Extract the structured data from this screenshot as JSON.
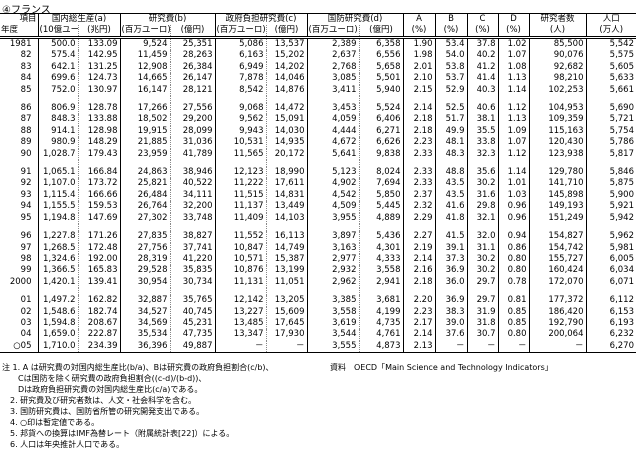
{
  "title": "④フランス",
  "header": {
    "item": "項目",
    "year": "年度",
    "groups": [
      {
        "label": "国内総生産(a)",
        "units": [
          "(10億ユーロ)",
          "(兆円)"
        ]
      },
      {
        "label": "研究費(b)",
        "units": [
          "(百万ユーロ)",
          "(億円)"
        ]
      },
      {
        "label": "政府負担研究費(c)",
        "units": [
          "(百万ユーロ)",
          "(億円)"
        ]
      },
      {
        "label": "国防研究費(d)",
        "units": [
          "(百万ユーロ)",
          "(億円)"
        ]
      }
    ],
    "indices": [
      {
        "label": "A",
        "unit": "(%)"
      },
      {
        "label": "B",
        "unit": "(%)"
      },
      {
        "label": "C",
        "unit": "(%)"
      },
      {
        "label": "D",
        "unit": "(%)"
      }
    ],
    "researchers": {
      "label": "研究者数",
      "unit": "(人)"
    },
    "population": {
      "label": "人口",
      "unit": "(万人)"
    }
  },
  "rows": [
    [
      "1981",
      "500.0",
      "133.09",
      "9,524",
      "25,351",
      "5,086",
      "13,537",
      "2,389",
      "6,358",
      "1.90",
      "53.4",
      "37.8",
      "1.02",
      "85,500",
      "5,542"
    ],
    [
      "82",
      "575.4",
      "142.95",
      "11,459",
      "28,263",
      "6,163",
      "15,202",
      "2,637",
      "6,556",
      "1.98",
      "54.0",
      "40.2",
      "1.07",
      "90,076",
      "5,575"
    ],
    [
      "83",
      "642.1",
      "131.25",
      "12,908",
      "26,384",
      "6,949",
      "14,202",
      "2,768",
      "5,658",
      "2.01",
      "53.8",
      "41.2",
      "1.08",
      "92,682",
      "5,605"
    ],
    [
      "84",
      "699.6",
      "124.73",
      "14,665",
      "26,147",
      "7,878",
      "14,046",
      "3,085",
      "5,501",
      "2.10",
      "53.7",
      "41.4",
      "1.13",
      "98,210",
      "5,633"
    ],
    [
      "85",
      "752.0",
      "130.97",
      "16,147",
      "28,121",
      "8,542",
      "14,876",
      "3,411",
      "5,940",
      "2.15",
      "52.9",
      "40.3",
      "1.14",
      "102,253",
      "5,661"
    ],
    [
      "86",
      "806.9",
      "128.78",
      "17,266",
      "27,556",
      "9,068",
      "14,472",
      "3,453",
      "5,524",
      "2.14",
      "52.5",
      "40.6",
      "1.12",
      "104,953",
      "5,690"
    ],
    [
      "87",
      "848.3",
      "133.88",
      "18,502",
      "29,200",
      "9,562",
      "15,091",
      "4,059",
      "6,406",
      "2.18",
      "51.7",
      "38.1",
      "1.13",
      "109,359",
      "5,721"
    ],
    [
      "88",
      "914.1",
      "128.98",
      "19,915",
      "28,099",
      "9,943",
      "14,030",
      "4,444",
      "6,271",
      "2.18",
      "49.9",
      "35.5",
      "1.09",
      "115,163",
      "5,754"
    ],
    [
      "89",
      "980.9",
      "148.29",
      "21,885",
      "31,036",
      "10,531",
      "14,935",
      "4,672",
      "6,626",
      "2.23",
      "48.1",
      "33.8",
      "1.07",
      "120,430",
      "5,786"
    ],
    [
      "90",
      "1,028.7",
      "179.43",
      "23,959",
      "41,789",
      "11,565",
      "20,172",
      "5,641",
      "9,838",
      "2.33",
      "48.3",
      "32.3",
      "1.12",
      "123,938",
      "5,817"
    ],
    [
      "91",
      "1,065.1",
      "166.84",
      "24,863",
      "38,946",
      "12,123",
      "18,990",
      "5,123",
      "8,024",
      "2.33",
      "48.8",
      "35.6",
      "1.14",
      "129,780",
      "5,846"
    ],
    [
      "92",
      "1,107.0",
      "173.72",
      "25,821",
      "40,522",
      "11,222",
      "17,611",
      "4,902",
      "7,694",
      "2.33",
      "43.5",
      "30.2",
      "1.01",
      "141,710",
      "5,875"
    ],
    [
      "93",
      "1,115.4",
      "166.66",
      "26,484",
      "34,111",
      "11,515",
      "14,831",
      "4,542",
      "5,850",
      "2.37",
      "43.5",
      "31.6",
      "1.03",
      "145,898",
      "5,900"
    ],
    [
      "94",
      "1,155.5",
      "159.53",
      "26,764",
      "32,200",
      "11,137",
      "13,449",
      "4,509",
      "5,445",
      "2.32",
      "41.6",
      "29.8",
      "0.96",
      "149,193",
      "5,921"
    ],
    [
      "95",
      "1,194.8",
      "147.69",
      "27,302",
      "33,748",
      "11,409",
      "14,103",
      "3,955",
      "4,889",
      "2.29",
      "41.8",
      "32.1",
      "0.96",
      "151,249",
      "5,942"
    ],
    [
      "96",
      "1,227.8",
      "171.26",
      "27,835",
      "38,827",
      "11,552",
      "16,113",
      "3,897",
      "5,436",
      "2.27",
      "41.5",
      "32.0",
      "0.94",
      "154,827",
      "5,962"
    ],
    [
      "97",
      "1,268.5",
      "172.48",
      "27,756",
      "37,741",
      "10,847",
      "14,749",
      "3,163",
      "4,301",
      "2.19",
      "39.1",
      "31.1",
      "0.86",
      "154,742",
      "5,981"
    ],
    [
      "98",
      "1,324.6",
      "192.00",
      "28,319",
      "41,220",
      "10,571",
      "15,387",
      "2,977",
      "4,333",
      "2.14",
      "37.3",
      "30.2",
      "0.80",
      "155,727",
      "6,005"
    ],
    [
      "99",
      "1,366.5",
      "165.83",
      "29,528",
      "35,835",
      "10,876",
      "13,199",
      "2,932",
      "3,558",
      "2.16",
      "36.9",
      "30.2",
      "0.80",
      "160,424",
      "6,034"
    ],
    [
      "2000",
      "1,420.1",
      "139.41",
      "30,954",
      "30,734",
      "11,131",
      "11,051",
      "2,962",
      "2,941",
      "2.18",
      "36.0",
      "29.7",
      "0.78",
      "172,070",
      "6,071"
    ],
    [
      "01",
      "1,497.2",
      "162.82",
      "32,887",
      "35,765",
      "12,142",
      "13,205",
      "3,385",
      "3,681",
      "2.20",
      "36.9",
      "29.7",
      "0.81",
      "177,372",
      "6,112"
    ],
    [
      "02",
      "1,548.6",
      "182.74",
      "34,527",
      "40,745",
      "13,227",
      "15,609",
      "3,558",
      "4,199",
      "2.23",
      "38.3",
      "31.9",
      "0.85",
      "186,420",
      "6,153"
    ],
    [
      "03",
      "1,594.8",
      "208.67",
      "34,569",
      "45,231",
      "13,485",
      "17,645",
      "3,619",
      "4,735",
      "2.17",
      "39.0",
      "31.8",
      "0.85",
      "192,790",
      "6,193"
    ],
    [
      "04",
      "1,659.0",
      "222.87",
      "35,534",
      "47,735",
      "13,347",
      "17,930",
      "3,544",
      "4,761",
      "2.14",
      "37.6",
      "30.7",
      "0.80",
      "200,064",
      "6,232"
    ],
    [
      "○05",
      "1,710.0",
      "234.39",
      "36,396",
      "49,887",
      "－",
      "－",
      "3,555",
      "4,873",
      "2.13",
      "－",
      "－",
      "－",
      "－",
      "6,270"
    ]
  ],
  "notes": [
    "注 1. A は研究費の対国内総生産比(b/a)、Bは研究費の政府負担割合(c/b)、",
    "　　Cは国防を除く研究費の政府負担割合((c-d)/(b-d))、",
    "　　Dは政府負担研究費の対国内総生産比(c/a)である。",
    "　2. 研究費及び研究者数は、人文・社会科学を含む。",
    "　3. 国防研究費は、国防省所管の研究開発支出である。",
    "　4. ○印は暫定値である。",
    "　5. 邦貨への換算はIMF為替レート（附属統計表[22]）による。",
    "　6. 人口は年央推計人口である。"
  ],
  "source": "資料　OECD「Main Science and Technology Indicators」"
}
